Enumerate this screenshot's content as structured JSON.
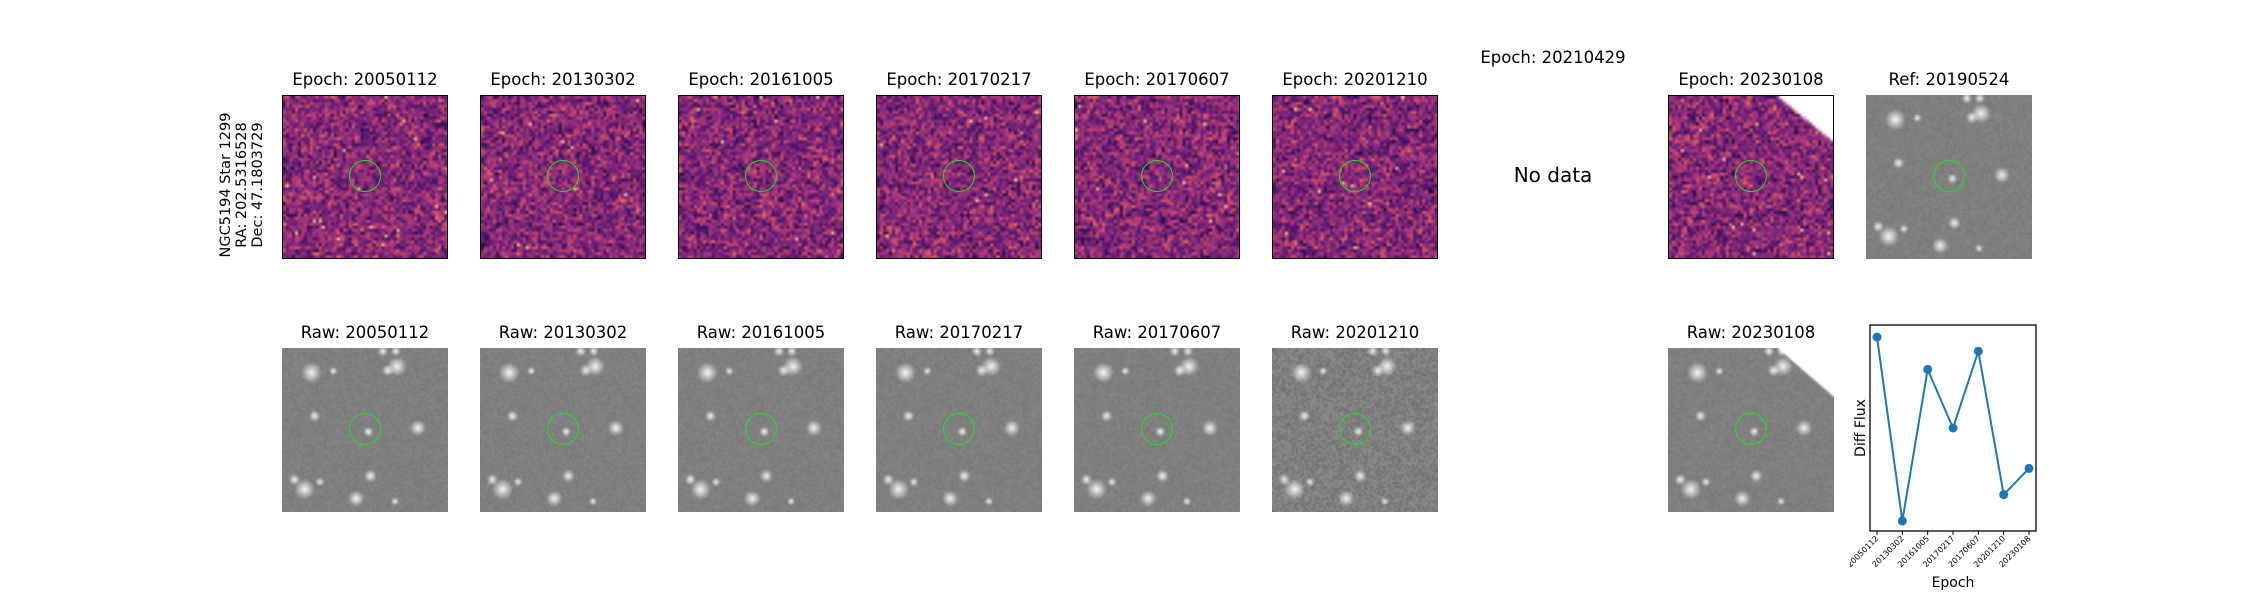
{
  "source_label": [
    "NGC5194 Star 1299",
    "RA: 202.5316528",
    "Dec: 47.1803729"
  ],
  "diff_titles": [
    "Epoch: 20050112",
    "Epoch: 20130302",
    "Epoch: 20161005",
    "Epoch: 20170217",
    "Epoch: 20170607",
    "Epoch: 20201210",
    "Epoch: 20210429",
    "Epoch: 20230108"
  ],
  "ref_title": "Ref: 20190524",
  "no_data_text": "No data",
  "raw_titles": [
    "Raw: 20050112",
    "Raw: 20130302",
    "Raw: 20161005",
    "Raw: 20170217",
    "Raw: 20170607",
    "Raw: 20201210",
    "Raw: 20230108"
  ],
  "colors": {
    "marker_ring": "#22dd22",
    "line": "#1f77b4"
  },
  "chart_data": {
    "type": "line",
    "x": [
      "20050112",
      "20130302",
      "20161005",
      "20170217",
      "20170607",
      "20201210",
      "20230108"
    ],
    "series": [
      {
        "values": [
          0.95,
          0.04,
          0.79,
          0.5,
          0.88,
          0.17,
          0.3
        ]
      }
    ],
    "xlabel": "Epoch",
    "ylabel": "Diff Flux",
    "show_yticks": false
  }
}
